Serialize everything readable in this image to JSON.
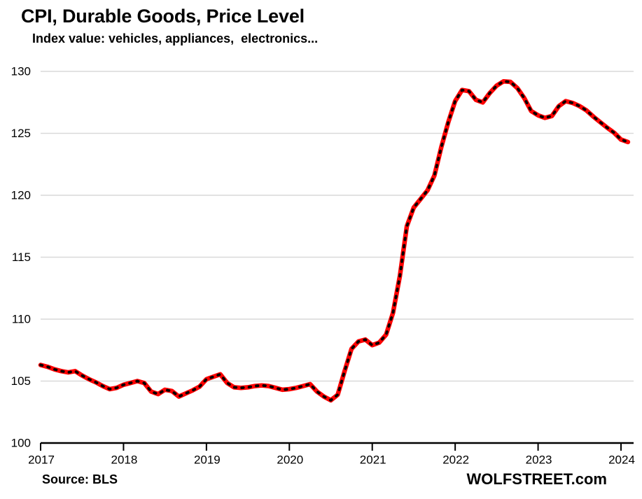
{
  "header": {
    "title": "CPI, Durable Goods, Price Level",
    "subtitle": "Index value: vehicles, appliances,  electronics..."
  },
  "footer": {
    "source": "Source: BLS",
    "watermark": "WOLFSTREET.com"
  },
  "chart_data": {
    "type": "line",
    "title": "CPI, Durable Goods, Price Level",
    "subtitle": "Index value: vehicles, appliances, electronics...",
    "source": "BLS",
    "x_start": "2017-01",
    "x_end": "2024-02",
    "frequency": "monthly",
    "x_tick_labels": [
      "2017",
      "2018",
      "2019",
      "2020",
      "2021",
      "2022",
      "2023",
      "2024"
    ],
    "y_tick_labels": [
      "100",
      "105",
      "110",
      "115",
      "120",
      "125",
      "130"
    ],
    "ylim": [
      100,
      130
    ],
    "grid": "horizontal",
    "gridline_color": "#D9D9D9",
    "axis_color": "#000000",
    "legend": "none",
    "series": [
      {
        "name": "CPI Durable Goods index value",
        "color": "#FF0000",
        "dash_overlay_color": "#000000",
        "values": [
          106.3,
          106.15,
          105.95,
          105.8,
          105.7,
          105.8,
          105.45,
          105.15,
          104.9,
          104.6,
          104.35,
          104.45,
          104.7,
          104.85,
          105.0,
          104.85,
          104.15,
          103.95,
          104.3,
          104.2,
          103.75,
          104.0,
          104.25,
          104.55,
          105.15,
          105.35,
          105.55,
          104.85,
          104.5,
          104.45,
          104.5,
          104.6,
          104.65,
          104.6,
          104.45,
          104.3,
          104.35,
          104.45,
          104.6,
          104.75,
          104.15,
          103.75,
          103.45,
          103.9,
          105.8,
          107.6,
          108.2,
          108.35,
          107.9,
          108.1,
          108.75,
          110.5,
          113.5,
          117.5,
          119.0,
          119.7,
          120.4,
          121.6,
          123.9,
          125.9,
          127.6,
          128.5,
          128.4,
          127.7,
          127.5,
          128.25,
          128.85,
          129.2,
          129.15,
          128.65,
          127.85,
          126.8,
          126.45,
          126.25,
          126.4,
          127.2,
          127.6,
          127.45,
          127.2,
          126.85,
          126.35,
          125.9,
          125.45,
          125.05,
          124.5,
          124.3
        ]
      }
    ]
  }
}
